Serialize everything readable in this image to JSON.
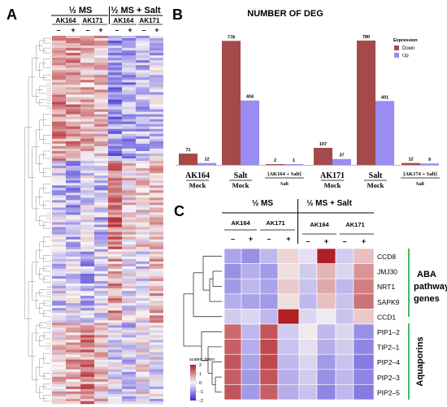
{
  "panel_labels": {
    "a": "A",
    "b": "B",
    "c": "C"
  },
  "colors": {
    "down": "#a54a4a",
    "up": "#9a8cf0",
    "heat_low": "#3a2bd8",
    "heat_mid": "#f7f4f4",
    "heat_high": "#b11f25",
    "aba_bracket": "#2fb54a",
    "aqp_bracket": "#2fb54a"
  },
  "panel_a": {
    "group_ms": "½ MS",
    "group_salt": "½ MS + Salt",
    "strains": [
      "AK164",
      "AK171",
      "AK164",
      "AK171"
    ],
    "treatments": [
      "–",
      "+",
      "–",
      "+",
      "–",
      "+",
      "–",
      "+"
    ]
  },
  "chart_data": [
    {
      "type": "bar",
      "title": "NUMBER OF DEG",
      "legend_title": "Expression",
      "legend_position": "top-right",
      "categories": [
        "AK164 Mock",
        "Salt Mock",
        "[AK164 + Salt] Salt",
        "AK171 Mock",
        "Salt Mock",
        "[AK174 + Salt] Salt"
      ],
      "tick_labels": [
        {
          "top": "AK164",
          "bottom": "Mock",
          "style": "large"
        },
        {
          "top": "Salt",
          "bottom": "Mock",
          "style": "large"
        },
        {
          "top": "[AK164 + Salt]",
          "bottom": "Salt",
          "style": "small"
        },
        {
          "top": "AK171",
          "bottom": "Mock",
          "style": "large"
        },
        {
          "top": "Salt",
          "bottom": "Mock",
          "style": "large"
        },
        {
          "top": "[AK174 + Salt]",
          "bottom": "Salt",
          "style": "small"
        }
      ],
      "series": [
        {
          "name": "Down",
          "values": [
            71,
            778,
            2,
            107,
            780,
            12
          ]
        },
        {
          "name": "Up",
          "values": [
            12,
            404,
            1,
            37,
            401,
            9
          ]
        }
      ],
      "ylim": [
        0,
        800
      ],
      "grid": false
    },
    {
      "type": "heatmap",
      "group_ms": "½ MS",
      "group_salt": "½ MS + Salt",
      "strains": [
        "AK164",
        "AK171",
        "AK164",
        "AK171"
      ],
      "treatments": [
        "–",
        "+",
        "–",
        "+",
        "–",
        "+",
        "–",
        "+"
      ],
      "rows": [
        "CCD8",
        "JMJ30",
        "NRT1",
        "SAPK9",
        "CCD1",
        "PIP1–2",
        "TIP2–1",
        "PIP2–4",
        "PIP2–3",
        "PIP2–5"
      ],
      "values": [
        [
          -0.8,
          -1.0,
          -0.6,
          0.3,
          -0.2,
          2.0,
          -0.4,
          0.5
        ],
        [
          -1.0,
          -0.7,
          -0.9,
          0.2,
          -0.4,
          0.6,
          -0.3,
          0.9
        ],
        [
          -0.9,
          -0.6,
          -0.8,
          0.4,
          -0.5,
          0.7,
          -0.6,
          1.1
        ],
        [
          -0.7,
          -0.8,
          -0.9,
          0.2,
          -0.6,
          0.5,
          -0.5,
          1.2
        ],
        [
          -0.4,
          -0.3,
          -0.6,
          2.1,
          -0.3,
          -0.1,
          -0.5,
          0.4
        ],
        [
          1.3,
          -0.6,
          1.5,
          -0.4,
          0.1,
          -0.6,
          -0.3,
          -1.0
        ],
        [
          1.4,
          -0.7,
          1.6,
          -0.5,
          -0.2,
          -0.7,
          -0.4,
          -1.1
        ],
        [
          1.5,
          -0.8,
          1.6,
          -0.6,
          -0.3,
          -0.9,
          -0.5,
          -1.2
        ],
        [
          1.4,
          -0.9,
          1.5,
          -0.7,
          -0.4,
          -1.0,
          -0.6,
          -1.1
        ],
        [
          1.5,
          -0.9,
          1.4,
          -0.7,
          -0.5,
          -1.1,
          -0.6,
          -1.2
        ]
      ],
      "legend_title": "scaled_fpkm",
      "legend_ticks": [
        2,
        1,
        0,
        -1,
        -2
      ],
      "group_labels": [
        {
          "text": "ABA pathway genes",
          "lines": [
            "ABA",
            "pathway",
            "genes"
          ]
        },
        {
          "text": "Aquaporins"
        }
      ]
    }
  ]
}
